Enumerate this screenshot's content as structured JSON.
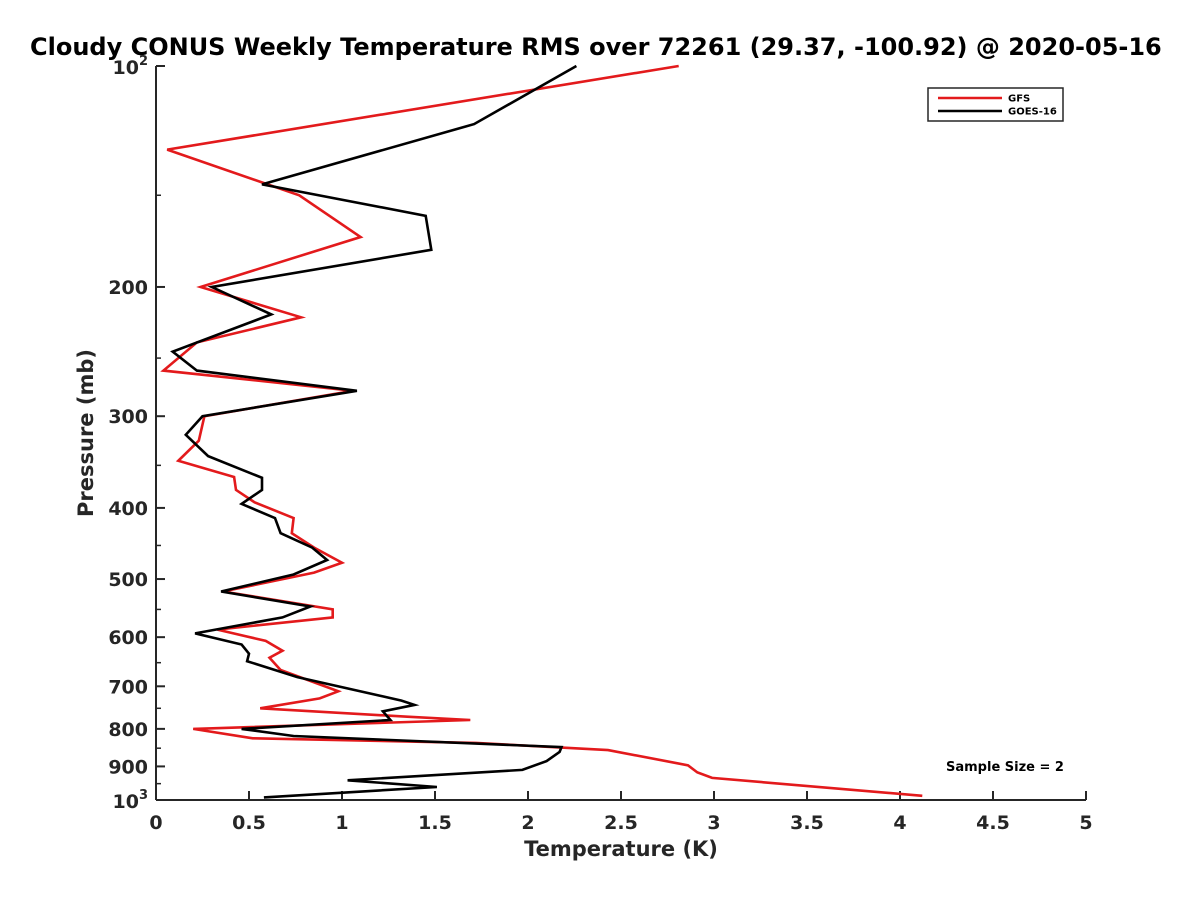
{
  "chart_data": {
    "type": "line",
    "title": "Cloudy CONUS Weekly Temperature RMS over 72261 (29.37, -100.92) @ 2020-05-16",
    "xlabel": "Temperature (K)",
    "ylabel": "Pressure (mb)",
    "xlim": [
      0,
      5
    ],
    "ylim": [
      100,
      1000
    ],
    "y_scale": "log",
    "y_reversed": true,
    "grid": false,
    "legend_position": "top-right",
    "x_ticks": [
      {
        "value": 0,
        "label": "0"
      },
      {
        "value": 0.5,
        "label": "0.5"
      },
      {
        "value": 1,
        "label": "1"
      },
      {
        "value": 1.5,
        "label": "1.5"
      },
      {
        "value": 2,
        "label": "2"
      },
      {
        "value": 2.5,
        "label": "2.5"
      },
      {
        "value": 3,
        "label": "3"
      },
      {
        "value": 3.5,
        "label": "3.5"
      },
      {
        "value": 4,
        "label": "4"
      },
      {
        "value": 4.5,
        "label": "4.5"
      },
      {
        "value": 5,
        "label": "5"
      }
    ],
    "y_ticks": [
      {
        "value": 100,
        "base": "10",
        "exp": "2"
      },
      {
        "value": 200,
        "label": "200"
      },
      {
        "value": 300,
        "label": "300"
      },
      {
        "value": 400,
        "label": "400"
      },
      {
        "value": 500,
        "label": "500"
      },
      {
        "value": 600,
        "label": "600"
      },
      {
        "value": 700,
        "label": "700"
      },
      {
        "value": 800,
        "label": "800"
      },
      {
        "value": 900,
        "label": "900"
      },
      {
        "value": 1000,
        "base": "10",
        "exp": "3"
      }
    ],
    "y_minor_ticks": [
      150,
      250,
      350,
      450,
      550,
      650,
      750,
      850,
      950
    ],
    "series": [
      {
        "name": "GFS",
        "color": "#e31a1c",
        "points": [
          [
            2.81,
            100
          ],
          [
            0.06,
            130
          ],
          [
            0.77,
            150
          ],
          [
            1.1,
            171
          ],
          [
            0.24,
            200
          ],
          [
            0.78,
            220
          ],
          [
            0.22,
            238
          ],
          [
            0.04,
            260
          ],
          [
            1.06,
            277
          ],
          [
            0.26,
            300
          ],
          [
            0.23,
            324
          ],
          [
            0.12,
            345
          ],
          [
            0.42,
            363
          ],
          [
            0.43,
            378
          ],
          [
            0.53,
            393
          ],
          [
            0.74,
            413
          ],
          [
            0.73,
            433
          ],
          [
            0.85,
            453
          ],
          [
            1.0,
            475
          ],
          [
            0.85,
            490
          ],
          [
            0.36,
            520
          ],
          [
            0.95,
            550
          ],
          [
            0.95,
            564
          ],
          [
            0.33,
            586
          ],
          [
            0.59,
            607
          ],
          [
            0.68,
            626
          ],
          [
            0.61,
            640
          ],
          [
            0.67,
            665
          ],
          [
            0.98,
            711
          ],
          [
            0.88,
            727
          ],
          [
            0.56,
            750
          ],
          [
            1.35,
            770
          ],
          [
            1.69,
            778
          ],
          [
            0.2,
            800
          ],
          [
            0.52,
            824
          ],
          [
            1.72,
            836
          ],
          [
            2.43,
            855
          ],
          [
            2.86,
            897
          ],
          [
            2.91,
            917
          ],
          [
            2.99,
            933
          ],
          [
            4.12,
            987
          ]
        ]
      },
      {
        "name": "GOES-16",
        "color": "#000000",
        "points": [
          [
            2.26,
            100
          ],
          [
            1.71,
            120
          ],
          [
            0.57,
            145
          ],
          [
            1.45,
            160
          ],
          [
            1.48,
            178
          ],
          [
            0.3,
            200
          ],
          [
            0.62,
            218
          ],
          [
            0.09,
            245
          ],
          [
            0.22,
            260
          ],
          [
            1.08,
            277
          ],
          [
            0.25,
            300
          ],
          [
            0.16,
            318
          ],
          [
            0.28,
            340
          ],
          [
            0.57,
            364
          ],
          [
            0.57,
            378
          ],
          [
            0.46,
            395
          ],
          [
            0.64,
            413
          ],
          [
            0.67,
            433
          ],
          [
            0.84,
            453
          ],
          [
            0.92,
            471
          ],
          [
            0.74,
            493
          ],
          [
            0.35,
            520
          ],
          [
            0.83,
            545
          ],
          [
            0.68,
            564
          ],
          [
            0.21,
            593
          ],
          [
            0.46,
            614
          ],
          [
            0.5,
            632
          ],
          [
            0.49,
            647
          ],
          [
            0.76,
            680
          ],
          [
            1.32,
            732
          ],
          [
            1.39,
            742
          ],
          [
            1.22,
            757
          ],
          [
            1.26,
            778
          ],
          [
            0.46,
            800
          ],
          [
            0.74,
            818
          ],
          [
            2.18,
            847
          ],
          [
            2.17,
            860
          ],
          [
            2.1,
            885
          ],
          [
            1.97,
            910
          ],
          [
            1.03,
            940
          ],
          [
            1.51,
            960
          ],
          [
            0.58,
            992
          ]
        ]
      }
    ],
    "annotation": "Sample Size = 2"
  }
}
